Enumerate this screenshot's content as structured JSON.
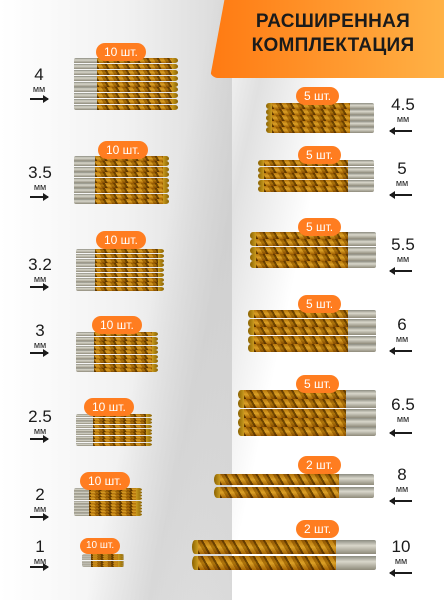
{
  "header": {
    "title_line1": "РАСШИРЕННАЯ",
    "title_line2": "КОМПЛЕКТАЦИЯ"
  },
  "colors": {
    "accent": "#ff7d20",
    "text": "#1b1b1b",
    "gold": "#d4a62a",
    "steel": "#a9a79c"
  },
  "left_sets": [
    {
      "size": "4",
      "unit": "мм",
      "count_label": "10 шт."
    },
    {
      "size": "3.5",
      "unit": "мм",
      "count_label": "10 шт."
    },
    {
      "size": "3.2",
      "unit": "мм",
      "count_label": "10 шт."
    },
    {
      "size": "3",
      "unit": "мм",
      "count_label": "10 шт."
    },
    {
      "size": "2.5",
      "unit": "мм",
      "count_label": "10 шт."
    },
    {
      "size": "2",
      "unit": "мм",
      "count_label": "10 шт."
    },
    {
      "size": "1",
      "unit": "мм",
      "count_label": "10 шт."
    }
  ],
  "right_sets": [
    {
      "size": "4.5",
      "unit": "мм",
      "count_label": "5 шт."
    },
    {
      "size": "5",
      "unit": "мм",
      "count_label": "5 шт."
    },
    {
      "size": "5.5",
      "unit": "мм",
      "count_label": "5 шт."
    },
    {
      "size": "6",
      "unit": "мм",
      "count_label": "5 шт."
    },
    {
      "size": "6.5",
      "unit": "мм",
      "count_label": "5 шт."
    },
    {
      "size": "8",
      "unit": "мм",
      "count_label": "2 шт."
    },
    {
      "size": "10",
      "unit": "мм",
      "count_label": "2 шт."
    }
  ]
}
